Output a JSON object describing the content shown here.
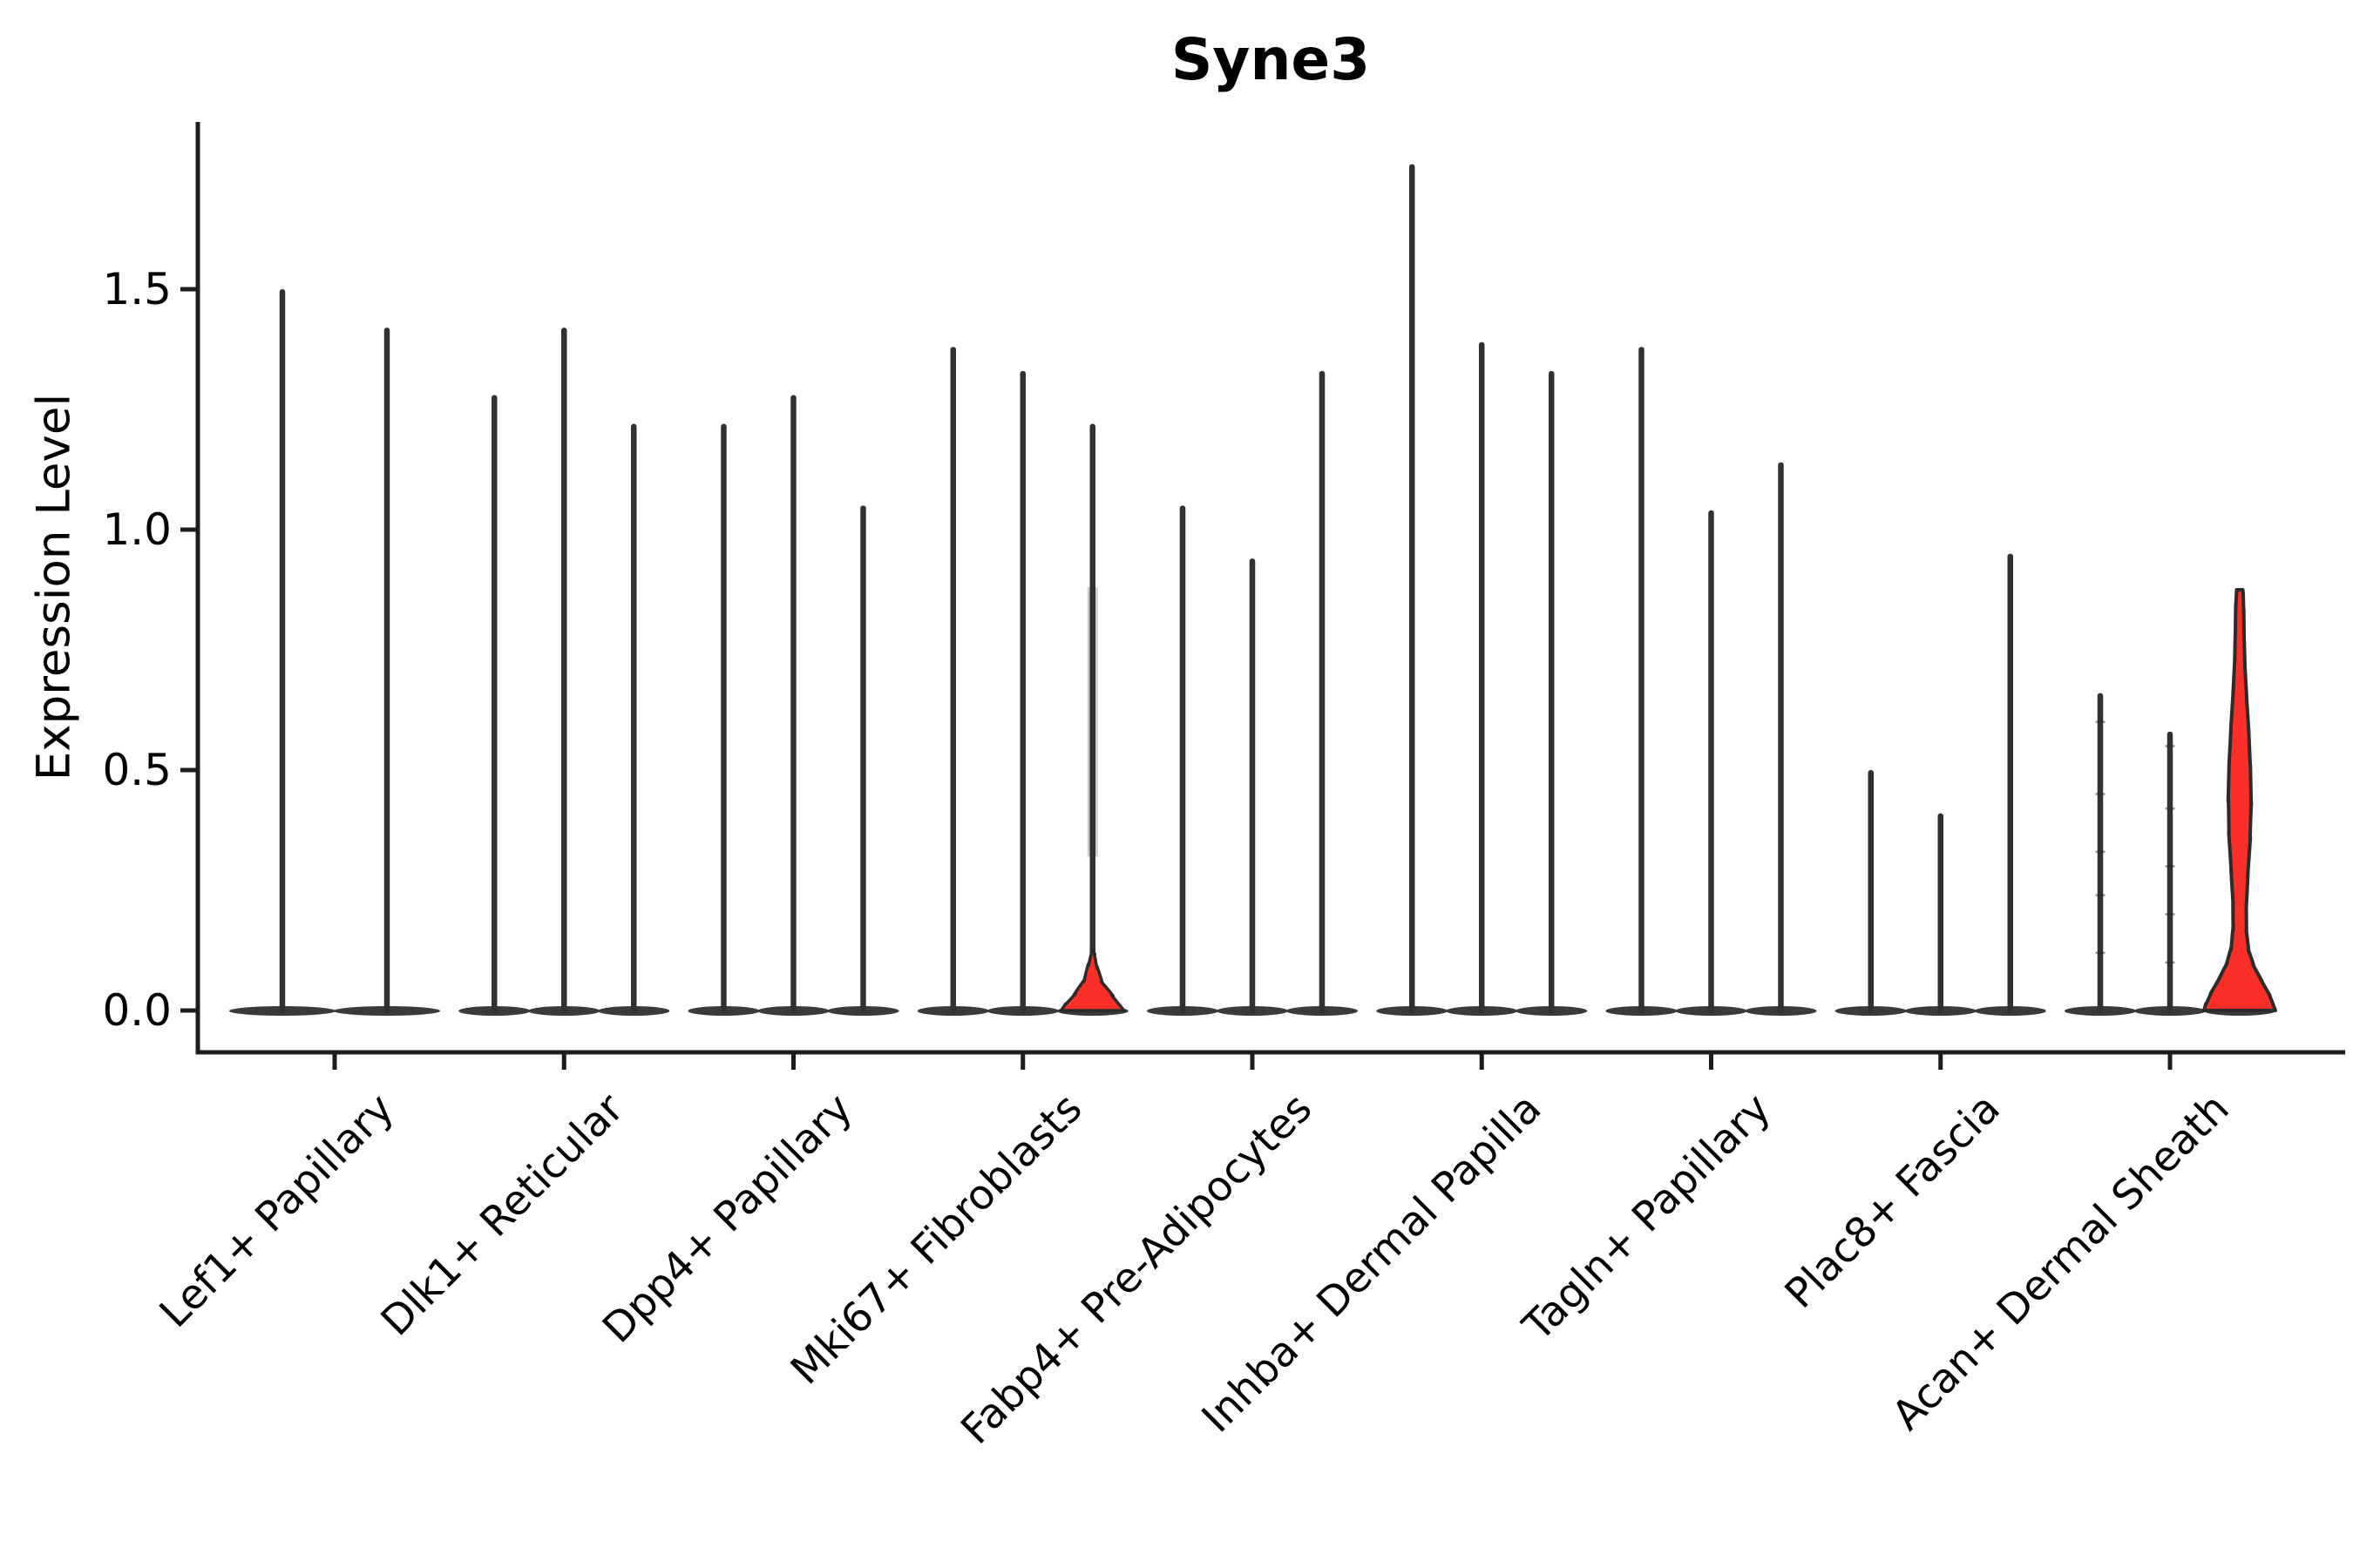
{
  "chart_data": {
    "type": "violin",
    "title": "Syne3",
    "xlabel": "",
    "ylabel": "Expression Level",
    "ylim": [
      -0.09,
      1.85
    ],
    "grid": false,
    "legend": "none",
    "yticks": [
      {
        "label": "0.0",
        "value": 0.0
      },
      {
        "label": "0.5",
        "value": 0.5
      },
      {
        "label": "1.0",
        "value": 1.0
      },
      {
        "label": "1.5",
        "value": 1.5
      }
    ],
    "colors": {
      "spike": "#313131",
      "base": "#3a3a3a",
      "outline": "#2b2b2b",
      "highlight_fill": "#fa2f28",
      "axis": "#1c1c1c",
      "text": "#000000"
    },
    "categories": [
      "Lef1+ Papillary",
      "Dlk1+ Reticular",
      "Dpp4+ Papillary",
      "Mki67+ Fibroblasts",
      "Fabp4+ Pre-Adipocytes",
      "Inhba+ Dermal Papilla",
      "Tagln+ Papillary",
      "Plac8+ Fascia",
      "Acan+ Dermal Sheath"
    ],
    "groups": [
      {
        "label": "Lef1+ Papillary",
        "violins": [
          {
            "max": 1.5,
            "style": "line"
          },
          {
            "max": 1.42,
            "style": "line"
          }
        ]
      },
      {
        "label": "Dlk1+ Reticular",
        "violins": [
          {
            "max": 1.28,
            "style": "line"
          },
          {
            "max": 1.42,
            "style": "line"
          },
          {
            "max": 1.22,
            "style": "line"
          }
        ]
      },
      {
        "label": "Dpp4+ Papillary",
        "violins": [
          {
            "max": 1.22,
            "style": "line"
          },
          {
            "max": 1.28,
            "style": "line"
          },
          {
            "max": 1.05,
            "style": "line"
          }
        ]
      },
      {
        "label": "Mki67+ Fibroblasts",
        "violins": [
          {
            "max": 1.38,
            "style": "line"
          },
          {
            "max": 1.33,
            "style": "line"
          },
          {
            "max": 1.22,
            "style": "red-base",
            "smear": [
              0.32,
              0.88
            ],
            "base_profile": [
              [
                0,
                36
              ],
              [
                0.02,
                29
              ],
              [
                0.045,
                14
              ],
              [
                0.075,
                6
              ],
              [
                0.11,
                3.8
              ],
              [
                0.13,
                0
              ]
            ]
          }
        ]
      },
      {
        "label": "Fabp4+ Pre-Adipocytes",
        "violins": [
          {
            "max": 1.05,
            "style": "line"
          },
          {
            "max": 0.94,
            "style": "line"
          },
          {
            "max": 1.33,
            "style": "line"
          }
        ]
      },
      {
        "label": "Inhba+ Dermal Papilla",
        "violins": [
          {
            "max": 1.76,
            "style": "line"
          },
          {
            "max": 1.39,
            "style": "line"
          },
          {
            "max": 1.33,
            "style": "line"
          }
        ]
      },
      {
        "label": "Tagln+ Papillary",
        "violins": [
          {
            "max": 1.38,
            "style": "line"
          },
          {
            "max": 1.04,
            "style": "line"
          },
          {
            "max": 1.14,
            "style": "line"
          }
        ]
      },
      {
        "label": "Plac8+ Fascia",
        "violins": [
          {
            "max": 0.5,
            "style": "line"
          },
          {
            "max": 0.41,
            "style": "line"
          },
          {
            "max": 0.95,
            "style": "line"
          }
        ]
      },
      {
        "label": "Acan+ Dermal Sheath",
        "violins": [
          {
            "max": 0.66,
            "style": "line",
            "points": [
              0.6,
              0.45,
              0.33,
              0.24,
              0.12
            ]
          },
          {
            "max": 0.58,
            "style": "line",
            "points": [
              0.55,
              0.42,
              0.3,
              0.2,
              0.1
            ]
          },
          {
            "max": 0.875,
            "style": "red-violin",
            "profile": [
              [
                0,
                41
              ],
              [
                0.02,
                38
              ],
              [
                0.05,
                29
              ],
              [
                0.08,
                19
              ],
              [
                0.11,
                11.5
              ],
              [
                0.145,
                8
              ],
              [
                0.19,
                7
              ],
              [
                0.25,
                8
              ],
              [
                0.32,
                11
              ],
              [
                0.4,
                13.5
              ],
              [
                0.47,
                13
              ],
              [
                0.55,
                11.5
              ],
              [
                0.62,
                9
              ],
              [
                0.69,
                6.5
              ],
              [
                0.75,
                5.2
              ],
              [
                0.81,
                4.8
              ],
              [
                0.86,
                4.5
              ],
              [
                0.875,
                3.5
              ]
            ]
          }
        ]
      }
    ]
  }
}
